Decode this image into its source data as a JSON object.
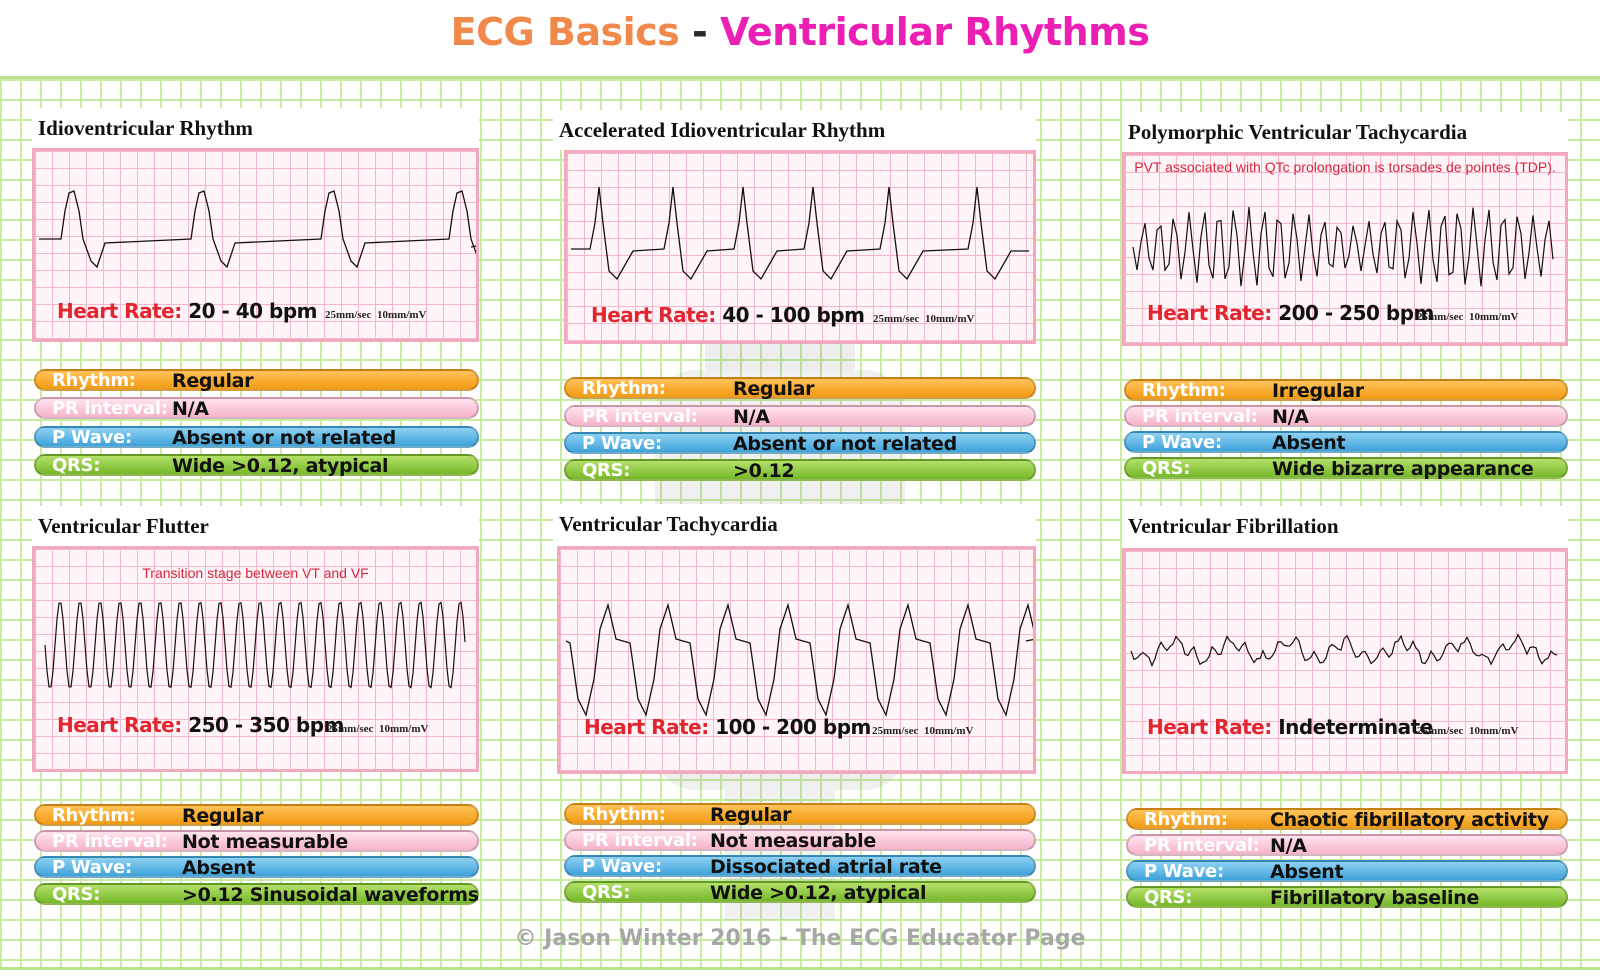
{
  "title": {
    "part1": "ECG Basics",
    "sep": " - ",
    "part2": "Ventricular Rhythms"
  },
  "footer": "© Jason Winter 2016 - The ECG Educator Page",
  "colors": {
    "title_orange": "#f0894a",
    "title_pink": "#ec1fb4",
    "heart_rate_label": "#e2262f",
    "rhythm_pill": "#f29a12",
    "pr_pill": "#f7b3cb",
    "pwave_pill": "#3ea2da",
    "qrs_pill": "#76b82a"
  },
  "labels": {
    "heart_rate": "Heart Rate:",
    "rhythm": "Rhythm:",
    "pr_interval": "PR interval:",
    "p_wave": "P Wave:",
    "qrs": "QRS:",
    "speed": "25mm/sec",
    "gain": "10mm/mV"
  },
  "panels": [
    {
      "name": "Idioventricular Rhythm",
      "note": "",
      "heart_rate": "20 - 40 bpm",
      "rhythm": "Regular",
      "pr_interval": "N/A",
      "p_wave": "Absent or not related",
      "qrs": "Wide >0.12, atypical"
    },
    {
      "name": "Accelerated Idioventricular Rhythm",
      "note": "",
      "heart_rate": "40 - 100 bpm",
      "rhythm": "Regular",
      "pr_interval": "N/A",
      "p_wave": "Absent or not related",
      "qrs": ">0.12"
    },
    {
      "name": "Polymorphic Ventricular Tachycardia",
      "note": "PVT associated with QTc prolongation is torsades de pointes (TDP).",
      "heart_rate": "200 - 250 bpm",
      "rhythm": "Irregular",
      "pr_interval": "N/A",
      "p_wave": "Absent",
      "qrs": "Wide bizarre appearance"
    },
    {
      "name": "Ventricular Flutter",
      "note": "Transition stage between VT and VF",
      "heart_rate": "250 - 350 bpm",
      "rhythm": "Regular",
      "pr_interval": "Not measurable",
      "p_wave": "Absent",
      "qrs": ">0.12 Sinusoidal waveforms"
    },
    {
      "name": "Ventricular Tachycardia",
      "note": "",
      "heart_rate": "100 - 200 bpm",
      "rhythm": "Regular",
      "pr_interval": "Not measurable",
      "p_wave": "Dissociated atrial rate",
      "qrs": "Wide >0.12, atypical"
    },
    {
      "name": "Ventricular Fibrillation",
      "note": "",
      "heart_rate": "Indeterminate",
      "rhythm": "Chaotic fibrillatory activity",
      "pr_interval": "N/A",
      "p_wave": "Absent",
      "qrs": "Fibrillatory baseline"
    }
  ]
}
